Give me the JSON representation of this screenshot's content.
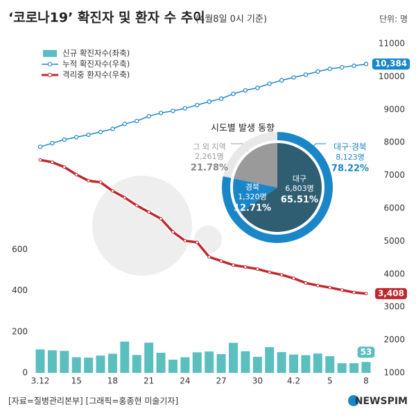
{
  "chart_data": [
    {
      "type": "combo",
      "title": "‘코로나19’ 확진자 및 환자 수 추이",
      "subtitle": "(4월8일 0시 기준)",
      "unit_label": "단위: 명",
      "categories": [
        "3.12",
        null,
        null,
        "15",
        null,
        null,
        "18",
        null,
        null,
        "21",
        null,
        null,
        "24",
        null,
        null,
        "27",
        null,
        null,
        "30",
        null,
        null,
        "4.2",
        null,
        null,
        "5",
        null,
        null,
        "8"
      ],
      "series": [
        {
          "name": "신규 확진자수(좌축)",
          "color": "#5bbfbf",
          "axis": "y",
          "values": [
            114,
            110,
            107,
            76,
            74,
            84,
            93,
            152,
            87,
            147,
            98,
            64,
            76,
            100,
            104,
            91,
            146,
            105,
            78,
            125,
            101,
            89,
            86,
            94,
            81,
            47,
            47,
            53
          ]
        },
        {
          "name": "누적 확진자수(우축)",
          "color": "#1a86c8",
          "axis": "y2",
          "values": [
            7869,
            7979,
            8086,
            8162,
            8236,
            8320,
            8413,
            8565,
            8652,
            8799,
            8897,
            8961,
            9037,
            9137,
            9241,
            9332,
            9478,
            9583,
            9661,
            9786,
            9887,
            9976,
            10062,
            10156,
            10237,
            10284,
            10331,
            10384
          ],
          "value_labels": [
            null,
            null,
            null,
            null,
            null,
            null,
            null,
            null,
            null,
            null,
            null,
            null,
            null,
            null,
            null,
            null,
            null,
            null,
            null,
            null,
            null,
            null,
            null,
            null,
            null,
            null,
            null,
            "10,384"
          ]
        },
        {
          "name": "격리중 환자수(우축)",
          "color": "#c0282e",
          "axis": "y2",
          "values": [
            7470,
            7400,
            7253,
            7024,
            6838,
            6789,
            6527,
            6325,
            6085,
            5884,
            5684,
            5281,
            5013,
            4966,
            4523,
            4398,
            4275,
            4216,
            4155,
            4057,
            3979,
            3873,
            3731,
            3654,
            3591,
            3517,
            3445,
            3408
          ],
          "value_labels": [
            null,
            null,
            null,
            null,
            null,
            null,
            null,
            null,
            null,
            null,
            null,
            null,
            null,
            null,
            null,
            null,
            null,
            null,
            null,
            null,
            null,
            null,
            null,
            null,
            null,
            null,
            null,
            "3,408"
          ]
        }
      ],
      "ylim": [
        0,
        1600
      ],
      "yticks": [
        0,
        200,
        400,
        600
      ],
      "y2lim": [
        1000,
        11000
      ],
      "y2ticks": [
        1000,
        2000,
        3000,
        4000,
        5000,
        6000,
        7000,
        8000,
        9000,
        10000,
        11000
      ],
      "grid": false
    },
    {
      "type": "pie",
      "title": "시도별 발생 동향",
      "categories": [
        "대구",
        "경북",
        "그 외 지역"
      ],
      "colors": [
        "#2f5e73",
        "#1a86c8",
        "#9a9a9a"
      ],
      "values": [
        6803,
        1320,
        2261
      ],
      "value_labels": [
        "6,803명",
        "1,320명",
        "2,261명"
      ],
      "percents": [
        65.51,
        12.71,
        21.78
      ],
      "percent_labels": [
        "65.51%",
        "12.71%",
        "21.78%"
      ],
      "group": {
        "name": "대구·경북",
        "value": 8123,
        "value_label": "8,123명",
        "percent": 78.22,
        "percent_label": "78.22%",
        "color": "#1a86c8",
        "rest_color": "#e8e8e8"
      }
    }
  ],
  "footer": {
    "source": "[자료=질병관리본부] [그래픽=홍종현 미술기자]",
    "brand": "NEWSPIM"
  }
}
